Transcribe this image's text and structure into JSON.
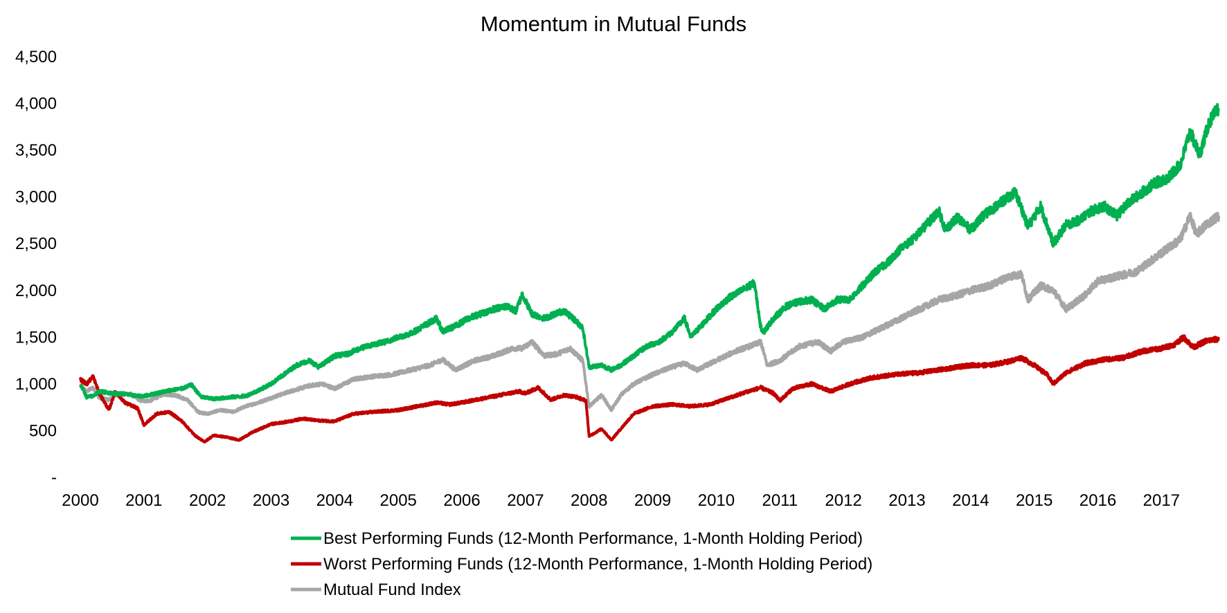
{
  "chart_data": {
    "type": "line",
    "title": "Momentum in Mutual Funds",
    "xlabel": "",
    "ylabel": "",
    "x_ticks": [
      "2000",
      "2001",
      "2002",
      "2003",
      "2004",
      "2005",
      "2006",
      "2007",
      "2008",
      "2009",
      "2010",
      "2011",
      "2012",
      "2013",
      "2014",
      "2015",
      "2016",
      "2017"
    ],
    "y_ticks": [
      {
        "value": 0,
        "label": "-"
      },
      {
        "value": 500,
        "label": "500"
      },
      {
        "value": 1000,
        "label": "1,000"
      },
      {
        "value": 1500,
        "label": "1,500"
      },
      {
        "value": 2000,
        "label": "2,000"
      },
      {
        "value": 2500,
        "label": "2,500"
      },
      {
        "value": 3000,
        "label": "3,000"
      },
      {
        "value": 3500,
        "label": "3,500"
      },
      {
        "value": 4000,
        "label": "4,000"
      },
      {
        "value": 4500,
        "label": "4,500"
      }
    ],
    "xlim": [
      2000,
      2017.9
    ],
    "ylim": [
      0,
      4500
    ],
    "grid": false,
    "legend_position": "bottom",
    "series": [
      {
        "name": "Best Performing Funds (12-Month Performance, 1-Month Holding Period)",
        "color": "#00B050",
        "x": [
          2000.0,
          2000.1,
          2000.2,
          2000.3,
          2000.5,
          2000.7,
          2000.9,
          2001.0,
          2001.2,
          2001.4,
          2001.6,
          2001.75,
          2001.9,
          2002.1,
          2002.4,
          2002.6,
          2002.8,
          2003.0,
          2003.2,
          2003.4,
          2003.6,
          2003.75,
          2004.0,
          2004.2,
          2004.4,
          2004.6,
          2004.8,
          2005.0,
          2005.2,
          2005.4,
          2005.6,
          2005.7,
          2005.9,
          2006.1,
          2006.3,
          2006.5,
          2006.7,
          2006.85,
          2006.95,
          2007.1,
          2007.3,
          2007.5,
          2007.6,
          2007.75,
          2007.9,
          2008.0,
          2008.2,
          2008.35,
          2008.5,
          2008.7,
          2008.9,
          2009.1,
          2009.3,
          2009.5,
          2009.6,
          2009.8,
          2010.0,
          2010.2,
          2010.4,
          2010.6,
          2010.7,
          2010.75,
          2010.9,
          2011.1,
          2011.3,
          2011.5,
          2011.7,
          2011.9,
          2012.1,
          2012.3,
          2012.5,
          2012.7,
          2012.9,
          2013.1,
          2013.3,
          2013.5,
          2013.6,
          2013.8,
          2014.0,
          2014.2,
          2014.4,
          2014.6,
          2014.7,
          2014.8,
          2014.9,
          2015.1,
          2015.3,
          2015.5,
          2015.7,
          2015.9,
          2016.1,
          2016.3,
          2016.5,
          2016.7,
          2016.9,
          2017.1,
          2017.3,
          2017.45,
          2017.6,
          2017.75,
          2017.9
        ],
        "values": [
          1000,
          860,
          870,
          920,
          900,
          890,
          870,
          870,
          900,
          930,
          950,
          990,
          860,
          840,
          860,
          870,
          930,
          1000,
          1100,
          1200,
          1250,
          1180,
          1300,
          1320,
          1380,
          1420,
          1450,
          1500,
          1540,
          1620,
          1700,
          1560,
          1620,
          1700,
          1750,
          1800,
          1830,
          1780,
          1960,
          1750,
          1700,
          1760,
          1780,
          1700,
          1600,
          1180,
          1200,
          1150,
          1200,
          1300,
          1400,
          1450,
          1550,
          1700,
          1500,
          1650,
          1800,
          1920,
          2000,
          2080,
          1600,
          1560,
          1700,
          1830,
          1880,
          1900,
          1800,
          1900,
          1900,
          2050,
          2200,
          2300,
          2450,
          2550,
          2700,
          2850,
          2650,
          2780,
          2650,
          2800,
          2900,
          3000,
          3050,
          2880,
          2680,
          2900,
          2500,
          2700,
          2750,
          2850,
          2900,
          2800,
          2950,
          3050,
          3150,
          3200,
          3350,
          3700,
          3450,
          3800,
          3950
        ]
      },
      {
        "name": "Worst Performing Funds (12-Month Performance, 1-Month Holding Period)",
        "color": "#C00000",
        "x": [
          2000.0,
          2000.1,
          2000.2,
          2000.3,
          2000.45,
          2000.55,
          2000.7,
          2000.9,
          2001.0,
          2001.2,
          2001.4,
          2001.6,
          2001.8,
          2001.95,
          2002.1,
          2002.3,
          2002.5,
          2002.7,
          2003.0,
          2003.3,
          2003.5,
          2003.7,
          2004.0,
          2004.3,
          2004.6,
          2005.0,
          2005.3,
          2005.6,
          2005.8,
          2006.0,
          2006.3,
          2006.6,
          2006.9,
          2007.0,
          2007.2,
          2007.4,
          2007.6,
          2007.8,
          2007.95,
          2008.0,
          2008.2,
          2008.35,
          2008.5,
          2008.7,
          2009.0,
          2009.3,
          2009.6,
          2009.9,
          2010.2,
          2010.5,
          2010.7,
          2010.9,
          2011.0,
          2011.2,
          2011.5,
          2011.8,
          2012.1,
          2012.4,
          2012.8,
          2013.2,
          2013.6,
          2014.0,
          2014.3,
          2014.6,
          2014.8,
          2015.0,
          2015.2,
          2015.3,
          2015.5,
          2015.8,
          2016.1,
          2016.4,
          2016.7,
          2017.0,
          2017.2,
          2017.35,
          2017.5,
          2017.7,
          2017.9
        ],
        "values": [
          1050,
          1000,
          1080,
          900,
          720,
          920,
          800,
          740,
          560,
          680,
          700,
          600,
          450,
          380,
          450,
          430,
          400,
          480,
          570,
          600,
          630,
          610,
          600,
          680,
          700,
          720,
          760,
          800,
          780,
          800,
          840,
          880,
          920,
          900,
          960,
          830,
          880,
          860,
          820,
          440,
          520,
          400,
          520,
          680,
          760,
          780,
          760,
          780,
          850,
          920,
          960,
          900,
          820,
          950,
          1000,
          920,
          1000,
          1060,
          1100,
          1120,
          1160,
          1200,
          1200,
          1240,
          1280,
          1200,
          1100,
          1000,
          1120,
          1220,
          1260,
          1280,
          1350,
          1380,
          1420,
          1500,
          1390,
          1460,
          1480
        ]
      },
      {
        "name": "Mutual Fund Index",
        "color": "#A6A6A6",
        "x": [
          2000.0,
          2000.1,
          2000.2,
          2000.3,
          2000.45,
          2000.6,
          2000.8,
          2000.95,
          2001.1,
          2001.3,
          2001.5,
          2001.7,
          2001.85,
          2002.0,
          2002.2,
          2002.4,
          2002.6,
          2002.8,
          2003.0,
          2003.3,
          2003.6,
          2003.8,
          2004.0,
          2004.3,
          2004.6,
          2004.9,
          2005.2,
          2005.5,
          2005.7,
          2005.9,
          2006.2,
          2006.5,
          2006.8,
          2006.95,
          2007.1,
          2007.3,
          2007.5,
          2007.7,
          2007.9,
          2008.0,
          2008.2,
          2008.35,
          2008.5,
          2008.7,
          2009.0,
          2009.3,
          2009.5,
          2009.7,
          2010.0,
          2010.3,
          2010.6,
          2010.7,
          2010.8,
          2011.0,
          2011.3,
          2011.6,
          2011.8,
          2012.0,
          2012.3,
          2012.6,
          2012.9,
          2013.2,
          2013.5,
          2013.8,
          2014.0,
          2014.3,
          2014.6,
          2014.8,
          2014.9,
          2015.1,
          2015.3,
          2015.5,
          2015.8,
          2016.0,
          2016.3,
          2016.6,
          2016.9,
          2017.1,
          2017.3,
          2017.45,
          2017.55,
          2017.7,
          2017.9
        ],
        "values": [
          980,
          920,
          960,
          850,
          830,
          900,
          890,
          820,
          820,
          890,
          880,
          820,
          700,
          680,
          720,
          700,
          760,
          800,
          850,
          920,
          980,
          1000,
          950,
          1050,
          1080,
          1100,
          1150,
          1200,
          1260,
          1150,
          1250,
          1300,
          1380,
          1380,
          1450,
          1300,
          1320,
          1380,
          1250,
          760,
          880,
          720,
          880,
          1000,
          1100,
          1180,
          1220,
          1150,
          1250,
          1350,
          1420,
          1450,
          1200,
          1250,
          1400,
          1450,
          1350,
          1450,
          1500,
          1600,
          1700,
          1800,
          1900,
          1950,
          2000,
          2050,
          2150,
          2170,
          1900,
          2050,
          2000,
          1800,
          1950,
          2100,
          2150,
          2200,
          2350,
          2450,
          2550,
          2800,
          2600,
          2700,
          2800
        ]
      }
    ]
  }
}
